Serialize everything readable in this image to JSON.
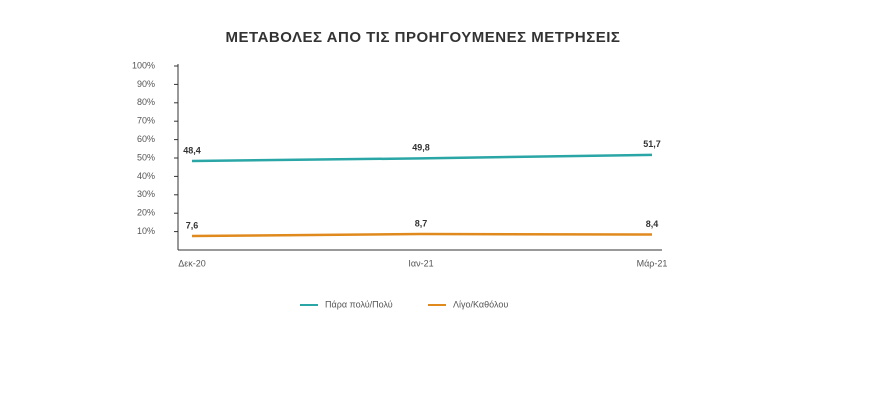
{
  "chart_data": {
    "type": "line",
    "title": "ΜΕΤΑΒΟΛΕΣ ΑΠΟ ΤΙΣ ΠΡΟΗΓΟΥΜΕΝΕΣ ΜΕΤΡΗΣΕΙΣ",
    "categories": [
      "Δεκ-20",
      "Ιαν-21",
      "Μάρ-21"
    ],
    "series": [
      {
        "name": "Πάρα πολύ/Πολύ",
        "color": "#2aa6a6",
        "values": [
          48.4,
          49.8,
          51.7
        ],
        "value_labels": [
          "48,4",
          "49,8",
          "51,7"
        ]
      },
      {
        "name": "Λίγο/Καθόλου",
        "color": "#e08a1e",
        "values": [
          7.6,
          8.7,
          8.4
        ],
        "value_labels": [
          "7,6",
          "8,7",
          "8,4"
        ]
      }
    ],
    "ylim": [
      0,
      100
    ],
    "yticks": [
      {
        "value": 10,
        "label": "10%"
      },
      {
        "value": 20,
        "label": "20%"
      },
      {
        "value": 30,
        "label": "30%"
      },
      {
        "value": 40,
        "label": "40%"
      },
      {
        "value": 50,
        "label": "50%"
      },
      {
        "value": 60,
        "label": "60%"
      },
      {
        "value": 70,
        "label": "70%"
      },
      {
        "value": 80,
        "label": "80%"
      },
      {
        "value": 90,
        "label": "90%"
      },
      {
        "value": 100,
        "label": "100%"
      }
    ],
    "legend": "bottom"
  }
}
